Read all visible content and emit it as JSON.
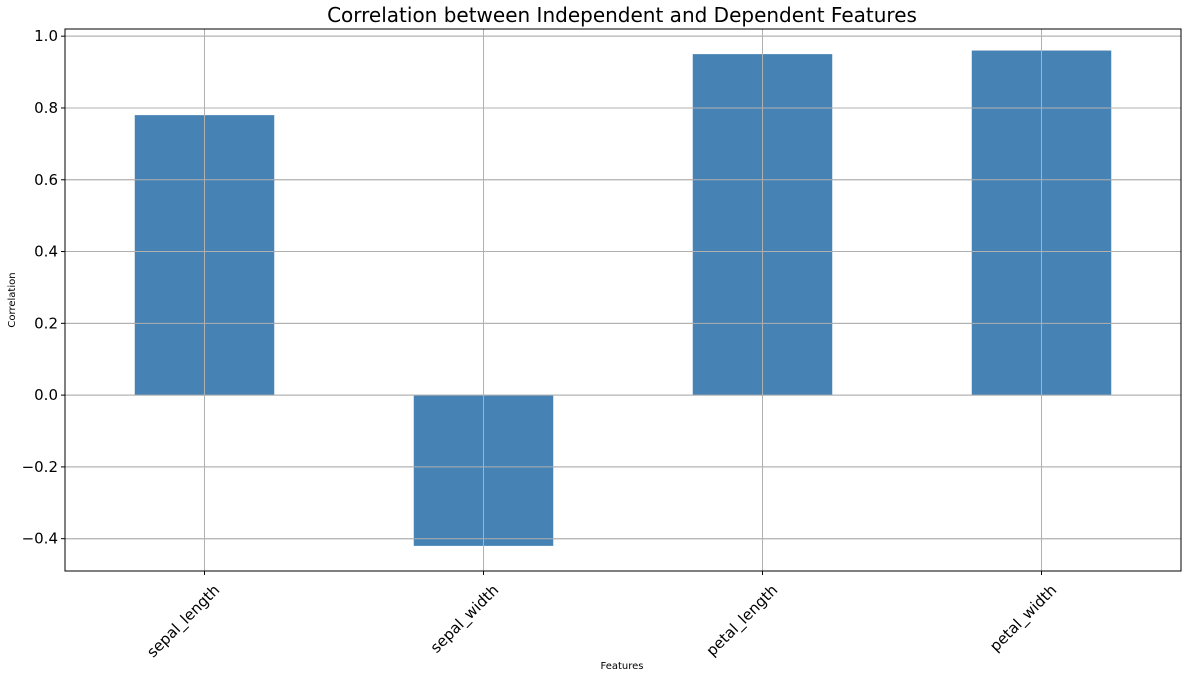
{
  "chart_data": {
    "type": "bar",
    "title": "Correlation between Independent and Dependent Features",
    "xlabel": "Features",
    "ylabel": "Correlation",
    "categories": [
      "sepal_length",
      "sepal_width",
      "petal_length",
      "petal_width"
    ],
    "values": [
      0.78,
      -0.42,
      0.95,
      0.96
    ],
    "ylim": [
      -0.49,
      1.02
    ],
    "yticks": [
      -0.4,
      -0.2,
      0.0,
      0.2,
      0.4,
      0.6,
      0.8,
      1.0
    ],
    "ytick_labels": [
      "−0.4",
      "−0.2",
      "0.0",
      "0.2",
      "0.4",
      "0.6",
      "0.8",
      "1.0"
    ],
    "grid": true,
    "legend": "none",
    "bar_color": "#4682b4",
    "grid_color": "#b0b0b0"
  }
}
